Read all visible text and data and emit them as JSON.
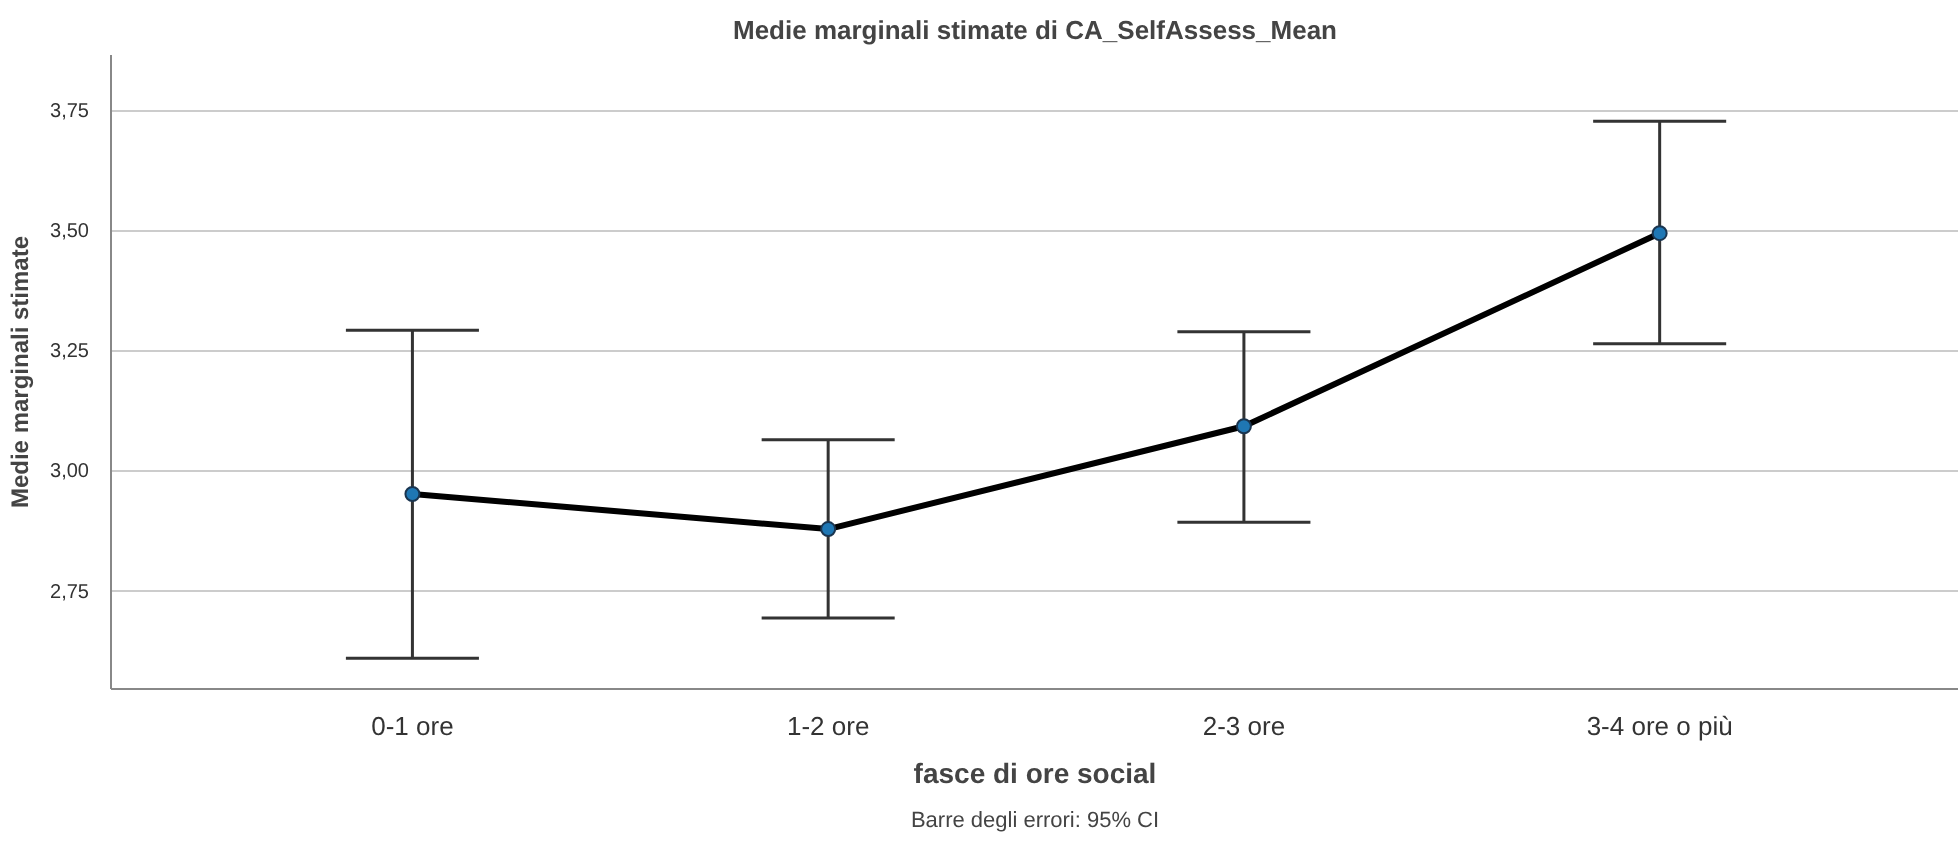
{
  "chart_data": {
    "type": "line",
    "title": "Medie marginali stimate di CA_SelfAssess_Mean",
    "xlabel": "fasce di ore social",
    "ylabel": "Medie marginali stimate",
    "categories": [
      "0-1 ore",
      "1-2 ore",
      "2-3 ore",
      "3-4 ore o più"
    ],
    "color": "#000000",
    "values": [
      2.951,
      2.878,
      3.092,
      3.494
    ],
    "errors": [
      [
        2.609,
        3.292
      ],
      [
        2.693,
        3.064
      ],
      [
        2.892,
        3.289
      ],
      [
        3.264,
        3.727
      ]
    ],
    "ylim": [
      2.545,
      3.865
    ],
    "yticks": [
      {
        "value": 2.75,
        "label": "2,75"
      },
      {
        "value": 3.0,
        "label": "3,00"
      },
      {
        "value": 3.25,
        "label": "3,25"
      },
      {
        "value": 3.5,
        "label": "3,50"
      },
      {
        "value": 3.75,
        "label": "3,75"
      }
    ],
    "grid": "y",
    "marker": "circle",
    "line_style": "solid",
    "annotations": [
      "Barre degli errori: 95% CI"
    ]
  }
}
